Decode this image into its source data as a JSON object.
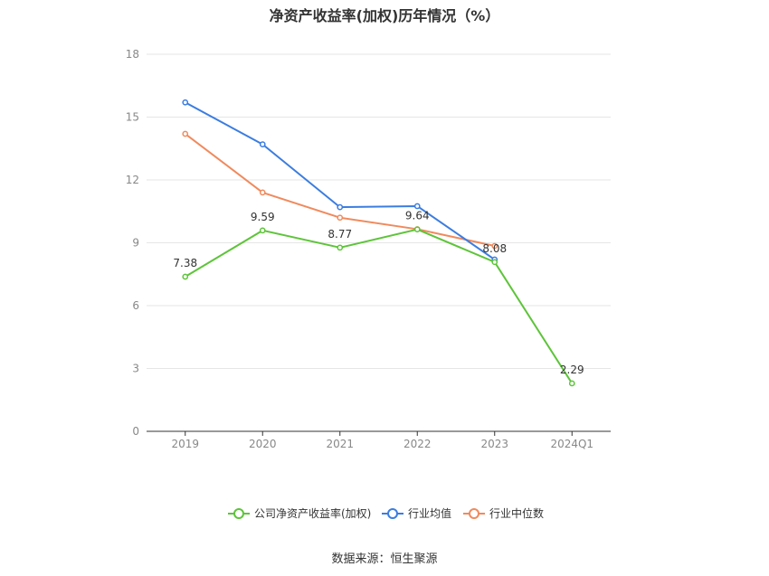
{
  "chart_data": {
    "type": "line",
    "title": "净资产收益率(加权)历年情况（%）",
    "xlabel": "",
    "ylabel": "",
    "categories": [
      "2019",
      "2020",
      "2021",
      "2022",
      "2023",
      "2024Q1"
    ],
    "ylim": [
      0,
      18
    ],
    "yticks": [
      0,
      3,
      6,
      9,
      12,
      15,
      18
    ],
    "grid": true,
    "legend_position": "bottom",
    "series": [
      {
        "name": "公司净资产收益率(加权)",
        "color": "#5ec43a",
        "values": [
          7.38,
          9.59,
          8.77,
          9.64,
          8.08,
          2.29
        ],
        "labels": [
          "7.38",
          "9.59",
          "8.77",
          "9.64",
          "8.08",
          "2.29"
        ]
      },
      {
        "name": "行业均值",
        "color": "#3b7de0",
        "values": [
          15.7,
          13.7,
          10.7,
          10.75,
          8.2,
          null
        ]
      },
      {
        "name": "行业中位数",
        "color": "#f08a5d",
        "values": [
          14.2,
          11.4,
          10.2,
          9.65,
          8.85,
          null
        ]
      }
    ]
  },
  "footer": {
    "source": "数据来源：恒生聚源"
  }
}
